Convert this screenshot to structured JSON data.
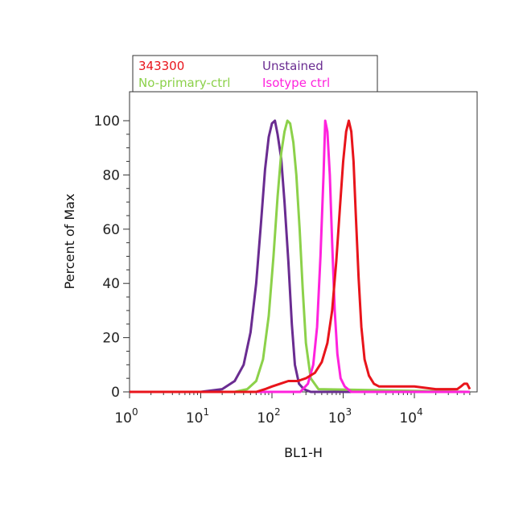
{
  "chart_data": {
    "type": "line",
    "title": "",
    "xlabel": "BL1-H",
    "ylabel": "Percent of Max",
    "x_scale": "log",
    "xlim": [
      1,
      60000
    ],
    "ylim": [
      0,
      110
    ],
    "grid": false,
    "legend_position": "top",
    "x_ticks": [
      {
        "value": 1,
        "base": "10",
        "exp": "0"
      },
      {
        "value": 10,
        "base": "10",
        "exp": "1"
      },
      {
        "value": 100,
        "base": "10",
        "exp": "2"
      },
      {
        "value": 1000,
        "base": "10",
        "exp": "3"
      },
      {
        "value": 10000,
        "base": "10",
        "exp": "4"
      }
    ],
    "y_ticks": [
      0,
      20,
      40,
      60,
      80,
      100
    ],
    "series": [
      {
        "name": "Unstained",
        "color": "#6a2c91",
        "x": [
          1,
          10,
          20,
          30,
          40,
          50,
          60,
          70,
          80,
          90,
          100,
          110,
          120,
          135,
          150,
          170,
          190,
          210,
          240,
          280,
          350,
          500,
          60000
        ],
        "y": [
          0,
          0,
          1,
          4,
          10,
          22,
          40,
          62,
          82,
          94,
          99,
          100,
          95,
          86,
          70,
          48,
          25,
          10,
          3,
          1,
          0,
          0,
          0
        ]
      },
      {
        "name": "No-primary-ctrl",
        "color": "#8cd14a",
        "x": [
          1,
          30,
          45,
          60,
          75,
          90,
          105,
          120,
          135,
          150,
          165,
          180,
          200,
          220,
          245,
          270,
          300,
          350,
          450,
          60000
        ],
        "y": [
          0,
          0,
          1,
          4,
          12,
          28,
          50,
          72,
          88,
          96,
          100,
          99,
          92,
          80,
          60,
          38,
          18,
          5,
          1,
          0
        ]
      },
      {
        "name": "Isotype ctrl",
        "color": "#ff22dd",
        "x": [
          1,
          250,
          320,
          380,
          430,
          480,
          530,
          560,
          600,
          650,
          700,
          760,
          830,
          920,
          1050,
          1300,
          60000
        ],
        "y": [
          0,
          0,
          3,
          10,
          24,
          50,
          80,
          100,
          96,
          80,
          55,
          30,
          14,
          5,
          2,
          0,
          0
        ]
      },
      {
        "name": "343300",
        "color": "#e8141b",
        "x": [
          1,
          60,
          80,
          100,
          130,
          170,
          230,
          300,
          400,
          500,
          600,
          700,
          800,
          900,
          1000,
          1100,
          1200,
          1300,
          1400,
          1500,
          1650,
          1800,
          2000,
          2300,
          2700,
          3200,
          4000,
          6000,
          10000,
          20000,
          40000,
          45000,
          50000,
          55000,
          60000
        ],
        "y": [
          0,
          0,
          1,
          2,
          3,
          4,
          4,
          5,
          7,
          11,
          18,
          30,
          48,
          68,
          85,
          96,
          100,
          96,
          85,
          66,
          42,
          24,
          12,
          6,
          3,
          2,
          2,
          2,
          2,
          1,
          1,
          2,
          3,
          3,
          1
        ]
      }
    ],
    "legend": [
      {
        "label": "343300",
        "color": "#e8141b"
      },
      {
        "label": "Unstained",
        "color": "#6a2c91"
      },
      {
        "label": "No-primary-ctrl",
        "color": "#8cd14a"
      },
      {
        "label": "Isotype ctrl",
        "color": "#ff22dd"
      }
    ]
  }
}
